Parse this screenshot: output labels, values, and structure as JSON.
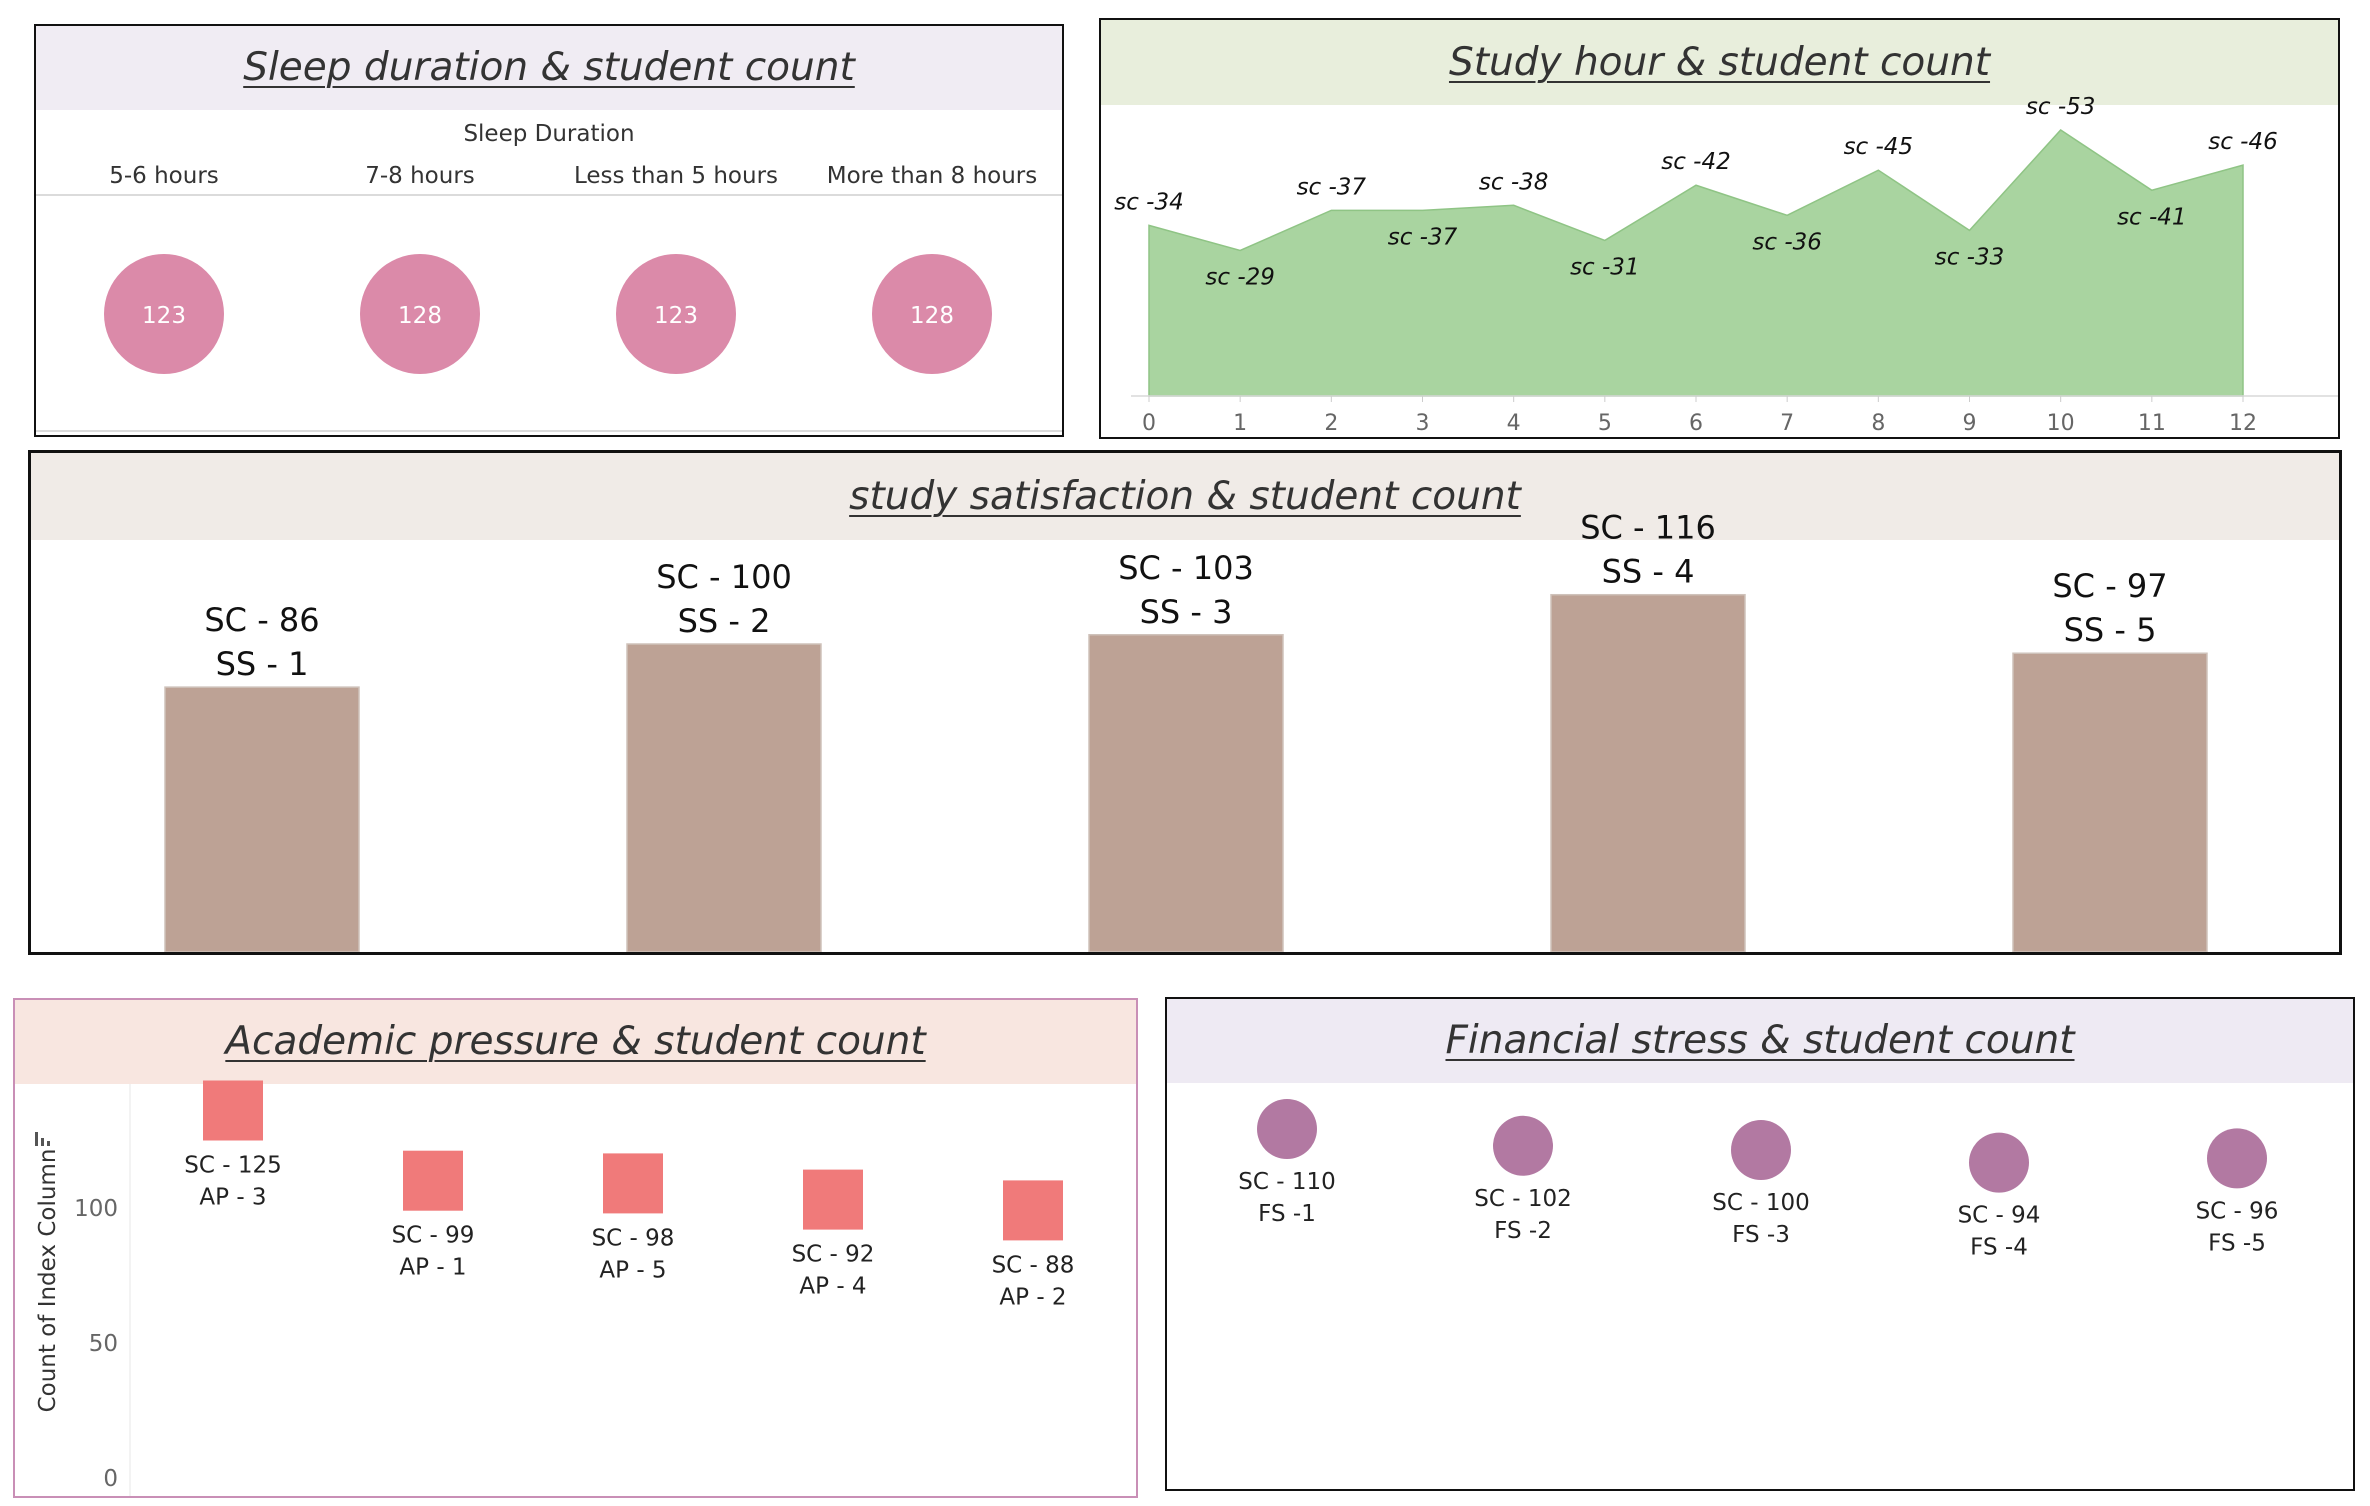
{
  "dashboard": {
    "sleep": {
      "title": "Sleep duration & student count"
    },
    "study": {
      "title": "Study hour & student count"
    },
    "satisfaction": {
      "title": "study satisfaction & student count"
    },
    "academic": {
      "title": "Academic pressure & student count"
    },
    "financial": {
      "title": "Financial stress &  student count"
    }
  },
  "chart_data": [
    {
      "type": "scatter",
      "title": "Sleep duration & student count",
      "header": "Sleep Duration",
      "categories": [
        "5-6 hours",
        "7-8 hours",
        "Less than 5 hours",
        "More than 8 hours"
      ],
      "values": [
        123,
        128,
        123,
        128
      ],
      "labels": [
        "123",
        "128",
        "123",
        "128"
      ],
      "color": "#db8aa9"
    },
    {
      "type": "area",
      "title": "Study hour & student count",
      "x": [
        0,
        1,
        2,
        3,
        4,
        5,
        6,
        7,
        8,
        9,
        10,
        11,
        12
      ],
      "values": [
        34,
        29,
        37,
        37,
        38,
        31,
        42,
        36,
        45,
        33,
        53,
        41,
        46
      ],
      "labels": [
        "sc -34",
        "sc -29",
        "sc -37",
        "sc -37",
        "sc -38",
        "sc -31",
        "sc -42",
        "sc -36",
        "sc -45",
        "sc -33",
        "sc -53",
        "sc -41",
        "sc -46"
      ],
      "xlim": [
        0,
        12
      ],
      "ylim": [
        0,
        55
      ],
      "color": "#a9d4a0"
    },
    {
      "type": "bar",
      "title": "study satisfaction & student count",
      "categories": [
        "1",
        "2",
        "3",
        "4",
        "5"
      ],
      "values": [
        86,
        100,
        103,
        116,
        97
      ],
      "labels": [
        [
          "SC - 86",
          "SS - 1"
        ],
        [
          "SC - 100",
          "SS - 2"
        ],
        [
          "SC - 103",
          "SS - 3"
        ],
        [
          "SC - 116",
          "SS - 4"
        ],
        [
          "SC - 97",
          "SS - 5"
        ]
      ],
      "ylim": [
        0,
        130
      ],
      "color": "#bda295"
    },
    {
      "type": "scatter",
      "title": "Academic pressure & student count",
      "ylabel": "Count of Index Column",
      "yticks": [
        0,
        50,
        100
      ],
      "ylim": [
        0,
        133
      ],
      "categories": [
        "3",
        "1",
        "5",
        "4",
        "2"
      ],
      "values": [
        125,
        99,
        98,
        92,
        88
      ],
      "labels": [
        [
          "SC - 125",
          "AP - 3"
        ],
        [
          "SC - 99",
          "AP - 1"
        ],
        [
          "SC - 98",
          "AP - 5"
        ],
        [
          "SC - 92",
          "AP - 4"
        ],
        [
          "SC - 88",
          "AP - 2"
        ]
      ],
      "color": "#f07a7a"
    },
    {
      "type": "scatter",
      "title": "Financial stress &  student count",
      "categories": [
        "1",
        "2",
        "3",
        "4",
        "5"
      ],
      "values": [
        110,
        102,
        100,
        94,
        96
      ],
      "labels": [
        [
          "SC - 110",
          "FS -1"
        ],
        [
          "SC - 102",
          "FS -2"
        ],
        [
          "SC - 100",
          "FS -3"
        ],
        [
          "SC - 94",
          "FS -4"
        ],
        [
          "SC - 96",
          "FS -5"
        ]
      ],
      "color": "#b279a2"
    }
  ]
}
